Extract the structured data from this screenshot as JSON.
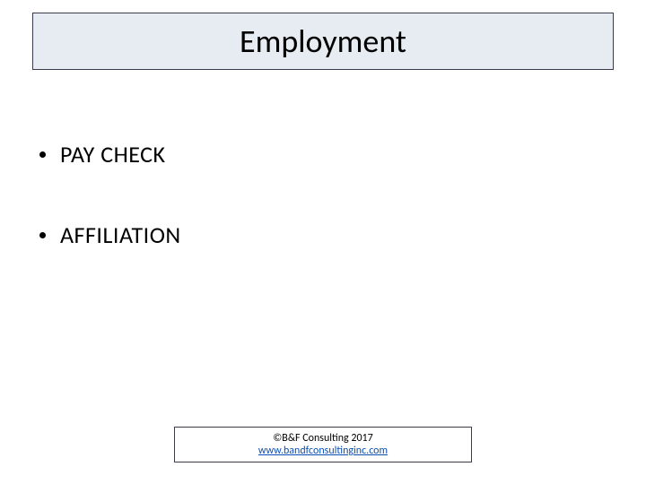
{
  "title": "Employment",
  "bullets": [
    "PAY CHECK",
    "AFFILIATION"
  ],
  "footer": {
    "copyright": "©B&F Consulting 2017",
    "link": "www.bandfconsultinginc.com"
  },
  "colors": {
    "title_bg": "#e6ecf2",
    "border": "#3a3a4a",
    "text": "#000000",
    "link": "#0b4fb4",
    "page_bg": "#ffffff"
  },
  "fontsizes": {
    "title": 36,
    "bullet": 26,
    "footer": 12
  }
}
